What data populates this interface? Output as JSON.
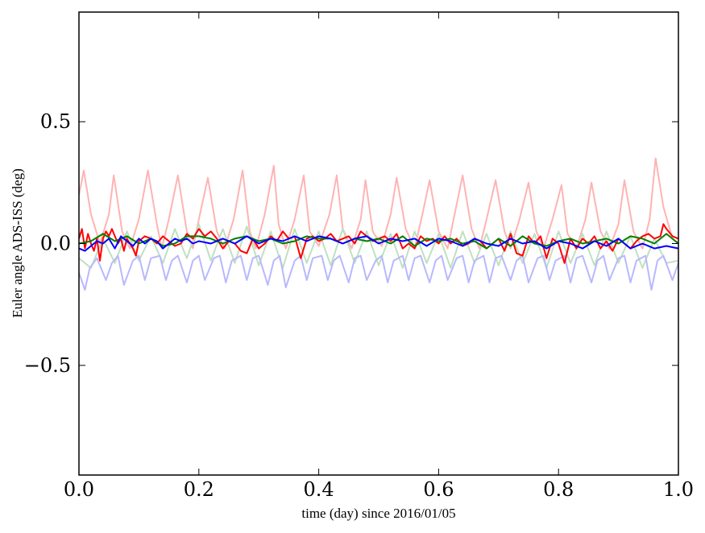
{
  "chart_data": {
    "type": "line",
    "title": "",
    "xlabel": "time (day) since 2016/01/05",
    "ylabel": "Euler angle ADS-ISS (deg)",
    "xlim": [
      0.0,
      1.0
    ],
    "ylim": [
      -0.95,
      0.95
    ],
    "xticks": [
      {
        "value": 0.0,
        "label": "0.0"
      },
      {
        "value": 0.2,
        "label": "0.2"
      },
      {
        "value": 0.4,
        "label": "0.4"
      },
      {
        "value": 0.6,
        "label": "0.6"
      },
      {
        "value": 0.8,
        "label": "0.8"
      },
      {
        "value": 1.0,
        "label": "1.0"
      }
    ],
    "yticks": [
      {
        "value": 0.5,
        "label": "0.5"
      },
      {
        "value": 0.0,
        "label": "0.0"
      },
      {
        "value": -0.5,
        "label": "−0.5"
      }
    ],
    "grid": false,
    "legend": "none",
    "series": [
      {
        "color": "#ffb3b3",
        "x": [
          0.0,
          0.008,
          0.02,
          0.035,
          0.05,
          0.058,
          0.072,
          0.085,
          0.1,
          0.115,
          0.13,
          0.138,
          0.15,
          0.165,
          0.18,
          0.19,
          0.2,
          0.215,
          0.23,
          0.243,
          0.258,
          0.273,
          0.285,
          0.295,
          0.31,
          0.325,
          0.333,
          0.345,
          0.36,
          0.375,
          0.385,
          0.4,
          0.418,
          0.43,
          0.44,
          0.455,
          0.47,
          0.478,
          0.49,
          0.505,
          0.52,
          0.53,
          0.545,
          0.56,
          0.573,
          0.585,
          0.6,
          0.615,
          0.625,
          0.64,
          0.655,
          0.668,
          0.68,
          0.695,
          0.71,
          0.72,
          0.735,
          0.75,
          0.763,
          0.775,
          0.79,
          0.805,
          0.815,
          0.83,
          0.845,
          0.855,
          0.87,
          0.885,
          0.9,
          0.91,
          0.925,
          0.94,
          0.952,
          0.962,
          0.975,
          0.99,
          1.0
        ],
        "values": [
          0.2,
          0.3,
          0.12,
          0.0,
          0.12,
          0.28,
          0.05,
          -0.02,
          0.1,
          0.3,
          0.08,
          -0.02,
          0.1,
          0.28,
          0.05,
          -0.02,
          0.1,
          0.27,
          0.05,
          -0.02,
          0.1,
          0.3,
          0.05,
          -0.02,
          0.12,
          0.32,
          0.08,
          -0.02,
          0.1,
          0.28,
          0.05,
          -0.01,
          0.12,
          0.28,
          0.06,
          -0.02,
          0.1,
          0.26,
          0.05,
          -0.01,
          0.12,
          0.27,
          0.06,
          -0.02,
          0.12,
          0.26,
          0.05,
          -0.02,
          0.1,
          0.28,
          0.06,
          -0.02,
          0.1,
          0.26,
          0.05,
          -0.02,
          0.1,
          0.25,
          0.05,
          -0.02,
          0.1,
          0.24,
          0.04,
          -0.02,
          0.1,
          0.25,
          0.05,
          -0.02,
          0.08,
          0.26,
          0.05,
          -0.02,
          0.1,
          0.35,
          0.15,
          0.02,
          0.0
        ]
      },
      {
        "color": "#bfe0bf",
        "x": [
          0.0,
          0.02,
          0.04,
          0.06,
          0.08,
          0.1,
          0.12,
          0.14,
          0.16,
          0.18,
          0.2,
          0.22,
          0.24,
          0.26,
          0.28,
          0.3,
          0.32,
          0.34,
          0.36,
          0.38,
          0.4,
          0.42,
          0.44,
          0.46,
          0.48,
          0.5,
          0.52,
          0.54,
          0.56,
          0.58,
          0.6,
          0.62,
          0.64,
          0.66,
          0.68,
          0.7,
          0.72,
          0.74,
          0.76,
          0.78,
          0.8,
          0.82,
          0.84,
          0.86,
          0.88,
          0.9,
          0.92,
          0.94,
          0.96,
          0.98,
          1.0
        ],
        "values": [
          -0.06,
          -0.1,
          0.02,
          -0.08,
          0.05,
          -0.07,
          0.03,
          -0.08,
          0.06,
          -0.06,
          0.08,
          -0.07,
          0.06,
          -0.08,
          0.07,
          -0.09,
          0.05,
          -0.1,
          0.06,
          -0.08,
          0.05,
          -0.09,
          0.06,
          -0.08,
          0.05,
          -0.09,
          0.04,
          -0.1,
          0.05,
          -0.08,
          0.04,
          -0.1,
          0.05,
          -0.08,
          0.04,
          -0.09,
          0.05,
          -0.08,
          0.04,
          -0.1,
          0.05,
          -0.08,
          0.04,
          -0.09,
          0.05,
          -0.08,
          0.03,
          -0.1,
          0.02,
          -0.08,
          -0.07
        ]
      },
      {
        "color": "#b8b8ff",
        "x": [
          0.0,
          0.01,
          0.018,
          0.03,
          0.045,
          0.055,
          0.065,
          0.075,
          0.09,
          0.1,
          0.11,
          0.12,
          0.135,
          0.145,
          0.155,
          0.165,
          0.18,
          0.19,
          0.2,
          0.21,
          0.225,
          0.235,
          0.245,
          0.255,
          0.27,
          0.28,
          0.29,
          0.3,
          0.315,
          0.325,
          0.335,
          0.345,
          0.36,
          0.37,
          0.38,
          0.39,
          0.405,
          0.415,
          0.425,
          0.435,
          0.45,
          0.46,
          0.47,
          0.48,
          0.495,
          0.505,
          0.515,
          0.525,
          0.54,
          0.55,
          0.56,
          0.57,
          0.585,
          0.595,
          0.605,
          0.615,
          0.63,
          0.64,
          0.65,
          0.66,
          0.675,
          0.685,
          0.695,
          0.705,
          0.72,
          0.73,
          0.74,
          0.75,
          0.765,
          0.775,
          0.785,
          0.795,
          0.81,
          0.82,
          0.83,
          0.84,
          0.855,
          0.865,
          0.875,
          0.885,
          0.9,
          0.91,
          0.92,
          0.93,
          0.945,
          0.955,
          0.965,
          0.975,
          0.99,
          1.0
        ],
        "values": [
          -0.12,
          -0.19,
          -0.1,
          -0.06,
          -0.15,
          -0.08,
          -0.05,
          -0.17,
          -0.07,
          -0.05,
          -0.15,
          -0.06,
          -0.05,
          -0.15,
          -0.07,
          -0.05,
          -0.16,
          -0.07,
          -0.05,
          -0.15,
          -0.06,
          -0.05,
          -0.16,
          -0.07,
          -0.05,
          -0.15,
          -0.06,
          -0.05,
          -0.17,
          -0.07,
          -0.05,
          -0.18,
          -0.07,
          -0.05,
          -0.15,
          -0.06,
          -0.05,
          -0.15,
          -0.07,
          -0.05,
          -0.16,
          -0.06,
          -0.05,
          -0.15,
          -0.07,
          -0.05,
          -0.16,
          -0.07,
          -0.05,
          -0.15,
          -0.06,
          -0.05,
          -0.16,
          -0.07,
          -0.05,
          -0.15,
          -0.06,
          -0.05,
          -0.16,
          -0.07,
          -0.05,
          -0.16,
          -0.06,
          -0.05,
          -0.15,
          -0.07,
          -0.05,
          -0.16,
          -0.06,
          -0.05,
          -0.15,
          -0.07,
          -0.05,
          -0.16,
          -0.06,
          -0.05,
          -0.16,
          -0.07,
          -0.05,
          -0.15,
          -0.06,
          -0.05,
          -0.16,
          -0.07,
          -0.05,
          -0.19,
          -0.07,
          -0.05,
          -0.15,
          -0.08
        ]
      },
      {
        "color": "#ff0000",
        "x": [
          0.0,
          0.005,
          0.01,
          0.015,
          0.02,
          0.025,
          0.03,
          0.035,
          0.04,
          0.045,
          0.05,
          0.055,
          0.06,
          0.065,
          0.07,
          0.075,
          0.08,
          0.085,
          0.09,
          0.095,
          0.1,
          0.11,
          0.12,
          0.13,
          0.14,
          0.15,
          0.16,
          0.17,
          0.18,
          0.19,
          0.2,
          0.21,
          0.22,
          0.23,
          0.24,
          0.25,
          0.26,
          0.27,
          0.28,
          0.29,
          0.3,
          0.31,
          0.32,
          0.33,
          0.34,
          0.35,
          0.36,
          0.37,
          0.38,
          0.39,
          0.4,
          0.41,
          0.42,
          0.43,
          0.44,
          0.45,
          0.46,
          0.47,
          0.48,
          0.49,
          0.5,
          0.51,
          0.52,
          0.53,
          0.54,
          0.55,
          0.56,
          0.57,
          0.58,
          0.59,
          0.6,
          0.61,
          0.62,
          0.63,
          0.64,
          0.65,
          0.66,
          0.67,
          0.68,
          0.69,
          0.7,
          0.71,
          0.72,
          0.73,
          0.74,
          0.75,
          0.76,
          0.77,
          0.78,
          0.79,
          0.8,
          0.81,
          0.82,
          0.83,
          0.84,
          0.85,
          0.86,
          0.87,
          0.88,
          0.89,
          0.9,
          0.91,
          0.92,
          0.93,
          0.94,
          0.95,
          0.96,
          0.97,
          0.975,
          0.98,
          0.99,
          1.0
        ],
        "values": [
          0.02,
          0.06,
          -0.02,
          0.04,
          0.0,
          -0.03,
          0.02,
          -0.07,
          0.02,
          0.05,
          0.03,
          0.06,
          0.03,
          0.0,
          0.02,
          -0.03,
          0.02,
          0.0,
          -0.02,
          -0.05,
          0.01,
          0.03,
          0.02,
          0.0,
          0.03,
          0.01,
          -0.01,
          0.0,
          0.04,
          0.02,
          0.06,
          0.03,
          0.05,
          0.02,
          -0.02,
          0.01,
          0.0,
          -0.03,
          -0.04,
          0.02,
          -0.02,
          0.0,
          0.03,
          0.01,
          0.05,
          0.02,
          0.03,
          -0.06,
          0.02,
          0.03,
          0.01,
          0.02,
          0.04,
          0.01,
          0.02,
          0.03,
          0.0,
          0.05,
          0.03,
          0.01,
          0.02,
          0.03,
          0.01,
          0.04,
          -0.02,
          0.0,
          -0.02,
          0.03,
          0.01,
          0.02,
          0.0,
          0.03,
          0.0,
          0.02,
          -0.01,
          0.0,
          0.02,
          0.01,
          -0.02,
          0.0,
          0.02,
          -0.03,
          0.04,
          -0.04,
          -0.05,
          0.03,
          0.0,
          0.03,
          -0.06,
          0.02,
          0.0,
          -0.08,
          0.02,
          -0.02,
          0.02,
          0.0,
          0.03,
          -0.02,
          0.01,
          -0.03,
          0.02,
          0.0,
          -0.02,
          0.01,
          0.03,
          0.04,
          0.02,
          0.03,
          0.08,
          0.06,
          0.03,
          0.02
        ]
      },
      {
        "color": "#008000",
        "x": [
          0.0,
          0.02,
          0.04,
          0.06,
          0.08,
          0.1,
          0.12,
          0.14,
          0.16,
          0.18,
          0.2,
          0.22,
          0.24,
          0.26,
          0.28,
          0.3,
          0.32,
          0.34,
          0.36,
          0.38,
          0.4,
          0.42,
          0.44,
          0.46,
          0.48,
          0.5,
          0.52,
          0.54,
          0.56,
          0.58,
          0.6,
          0.62,
          0.64,
          0.66,
          0.68,
          0.7,
          0.72,
          0.74,
          0.76,
          0.78,
          0.8,
          0.82,
          0.84,
          0.86,
          0.88,
          0.9,
          0.92,
          0.94,
          0.96,
          0.98,
          1.0
        ],
        "values": [
          0.0,
          0.01,
          0.04,
          0.01,
          0.03,
          0.0,
          0.02,
          -0.01,
          0.0,
          0.03,
          0.03,
          0.02,
          0.0,
          0.02,
          0.03,
          0.01,
          0.02,
          0.0,
          0.01,
          0.03,
          0.02,
          0.02,
          0.0,
          0.02,
          0.01,
          0.02,
          0.0,
          0.03,
          -0.01,
          0.02,
          0.01,
          0.02,
          0.0,
          0.01,
          -0.02,
          0.02,
          -0.01,
          0.03,
          0.0,
          -0.01,
          0.01,
          0.02,
          0.0,
          0.01,
          0.02,
          0.0,
          0.03,
          0.02,
          0.0,
          0.04,
          0.0
        ]
      },
      {
        "color": "#0000ff",
        "x": [
          0.0,
          0.01,
          0.02,
          0.03,
          0.04,
          0.05,
          0.06,
          0.07,
          0.08,
          0.09,
          0.1,
          0.11,
          0.12,
          0.13,
          0.14,
          0.15,
          0.16,
          0.17,
          0.18,
          0.19,
          0.2,
          0.22,
          0.24,
          0.26,
          0.28,
          0.3,
          0.32,
          0.34,
          0.36,
          0.38,
          0.4,
          0.42,
          0.44,
          0.46,
          0.48,
          0.5,
          0.52,
          0.54,
          0.56,
          0.58,
          0.6,
          0.62,
          0.64,
          0.66,
          0.68,
          0.7,
          0.72,
          0.74,
          0.76,
          0.78,
          0.8,
          0.82,
          0.84,
          0.86,
          0.88,
          0.9,
          0.92,
          0.94,
          0.96,
          0.98,
          1.0
        ],
        "values": [
          -0.02,
          -0.03,
          -0.01,
          0.01,
          0.0,
          0.02,
          -0.02,
          0.03,
          0.01,
          -0.01,
          0.02,
          0.0,
          0.02,
          0.01,
          -0.02,
          0.0,
          0.02,
          0.01,
          0.02,
          0.0,
          0.01,
          0.0,
          0.02,
          0.0,
          0.03,
          0.0,
          0.02,
          0.01,
          0.03,
          0.01,
          0.03,
          0.02,
          0.0,
          0.02,
          0.03,
          0.0,
          0.02,
          0.01,
          0.02,
          -0.01,
          0.02,
          0.01,
          -0.01,
          0.02,
          0.0,
          -0.01,
          0.02,
          0.0,
          0.01,
          -0.02,
          0.01,
          0.0,
          -0.02,
          0.01,
          -0.01,
          0.02,
          -0.02,
          0.0,
          -0.02,
          -0.01,
          -0.02
        ]
      }
    ]
  }
}
